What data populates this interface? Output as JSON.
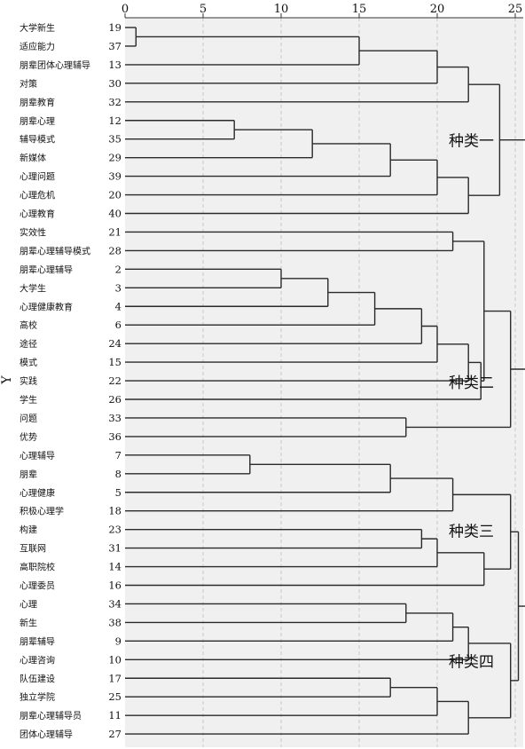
{
  "chart_data": {
    "type": "dendrogram",
    "ylabel": "Y",
    "xlim": [
      0,
      25
    ],
    "x_ticks": [
      0,
      5,
      10,
      15,
      20,
      25
    ],
    "grid": true,
    "leaves": [
      {
        "label": "大学新生",
        "id": "19"
      },
      {
        "label": "适应能力",
        "id": "37"
      },
      {
        "label": "朋辈团体心理辅导",
        "id": "13"
      },
      {
        "label": "对策",
        "id": "30"
      },
      {
        "label": "朋辈教育",
        "id": "32"
      },
      {
        "label": "朋辈心理",
        "id": "12"
      },
      {
        "label": "辅导模式",
        "id": "35"
      },
      {
        "label": "新媒体",
        "id": "29"
      },
      {
        "label": "心理问题",
        "id": "39"
      },
      {
        "label": "心理危机",
        "id": "20"
      },
      {
        "label": "心理教育",
        "id": "40"
      },
      {
        "label": "实效性",
        "id": "21"
      },
      {
        "label": "朋辈心理辅导模式",
        "id": "28"
      },
      {
        "label": "朋辈心理辅导",
        "id": "2"
      },
      {
        "label": "大学生",
        "id": "3"
      },
      {
        "label": "心理健康教育",
        "id": "4"
      },
      {
        "label": "高校",
        "id": "6"
      },
      {
        "label": "途径",
        "id": "24"
      },
      {
        "label": "模式",
        "id": "15"
      },
      {
        "label": "实践",
        "id": "22"
      },
      {
        "label": "学生",
        "id": "26"
      },
      {
        "label": "问题",
        "id": "33"
      },
      {
        "label": "优势",
        "id": "36"
      },
      {
        "label": "心理辅导",
        "id": "7"
      },
      {
        "label": "朋辈",
        "id": "8"
      },
      {
        "label": "心理健康",
        "id": "5"
      },
      {
        "label": "积极心理学",
        "id": "18"
      },
      {
        "label": "构建",
        "id": "23"
      },
      {
        "label": "互联网",
        "id": "31"
      },
      {
        "label": "高职院校",
        "id": "14"
      },
      {
        "label": "心理委员",
        "id": "16"
      },
      {
        "label": "心理",
        "id": "34"
      },
      {
        "label": "新生",
        "id": "38"
      },
      {
        "label": "朋辈辅导",
        "id": "9"
      },
      {
        "label": "心理咨询",
        "id": "10"
      },
      {
        "label": "队伍建设",
        "id": "17"
      },
      {
        "label": "独立学院",
        "id": "25"
      },
      {
        "label": "朋辈心理辅导员",
        "id": "11"
      },
      {
        "label": "团体心理辅导",
        "id": "27"
      }
    ],
    "merges": [
      {
        "a": "L0",
        "b": "L1",
        "h": 0.7
      },
      {
        "a": "M0",
        "b": "L2",
        "h": 15
      },
      {
        "a": "M1",
        "b": "L3",
        "h": 20
      },
      {
        "a": "M2",
        "b": "L4",
        "h": 22
      },
      {
        "a": "L5",
        "b": "L6",
        "h": 7
      },
      {
        "a": "M4",
        "b": "L7",
        "h": 12
      },
      {
        "a": "M5",
        "b": "L8",
        "h": 17
      },
      {
        "a": "M6",
        "b": "L9",
        "h": 20
      },
      {
        "a": "M7",
        "b": "L10",
        "h": 22
      },
      {
        "a": "M3",
        "b": "M8",
        "h": 24
      },
      {
        "a": "L13",
        "b": "L14",
        "h": 10
      },
      {
        "a": "M10",
        "b": "L15",
        "h": 13
      },
      {
        "a": "M11",
        "b": "L16",
        "h": 16
      },
      {
        "a": "M12",
        "b": "L17",
        "h": 19
      },
      {
        "a": "M13",
        "b": "L18",
        "h": 20
      },
      {
        "a": "M14",
        "b": "L19",
        "h": 22
      },
      {
        "a": "M15",
        "b": "L20",
        "h": 22.8
      },
      {
        "a": "L11",
        "b": "L12",
        "h": 21
      },
      {
        "a": "M17",
        "b": "M16",
        "h": 23
      },
      {
        "a": "L21",
        "b": "L22",
        "h": 18
      },
      {
        "a": "M18",
        "b": "M19",
        "h": 24.7
      },
      {
        "a": "L23",
        "b": "L24",
        "h": 8
      },
      {
        "a": "M21",
        "b": "L25",
        "h": 17
      },
      {
        "a": "M22",
        "b": "L26",
        "h": 21
      },
      {
        "a": "L27",
        "b": "L28",
        "h": 19
      },
      {
        "a": "M24",
        "b": "L29",
        "h": 20
      },
      {
        "a": "M25",
        "b": "L30",
        "h": 23
      },
      {
        "a": "M23",
        "b": "M26",
        "h": 24.7
      },
      {
        "a": "L31",
        "b": "L32",
        "h": 18
      },
      {
        "a": "M28",
        "b": "L33",
        "h": 21
      },
      {
        "a": "M29",
        "b": "L34",
        "h": 22
      },
      {
        "a": "L35",
        "b": "L36",
        "h": 17
      },
      {
        "a": "M31",
        "b": "L37",
        "h": 20
      },
      {
        "a": "M32",
        "b": "L38",
        "h": 22
      },
      {
        "a": "M30",
        "b": "M33",
        "h": 24.7
      },
      {
        "a": "M27",
        "b": "M34",
        "h": 25.2
      },
      {
        "a": "M20",
        "b": "M35",
        "h": 25.8
      },
      {
        "a": "M9",
        "b": "M36",
        "h": 26
      }
    ],
    "cluster_labels": [
      {
        "text": "种类一",
        "near_leaf": 6
      },
      {
        "text": "种类二",
        "near_leaf": 19
      },
      {
        "text": "种类三",
        "near_leaf": 27
      },
      {
        "text": "种类四",
        "near_leaf": 34
      }
    ]
  }
}
